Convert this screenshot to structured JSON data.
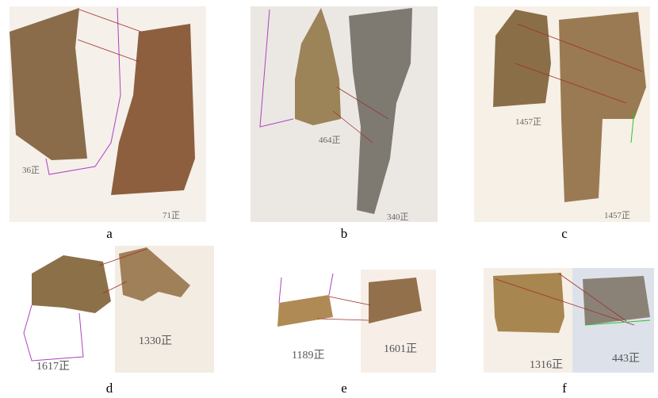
{
  "panels": [
    {
      "label": "a",
      "captions": [
        "36正",
        "71正"
      ]
    },
    {
      "label": "b",
      "captions": [
        "464正",
        "340正"
      ]
    },
    {
      "label": "c",
      "captions": [
        "1457正",
        "1457正"
      ]
    },
    {
      "label": "d",
      "captions": [
        "1617正",
        "1330正"
      ]
    },
    {
      "label": "e",
      "captions": [
        "1189正",
        "1601正"
      ]
    },
    {
      "label": "f",
      "captions": [
        "1316正",
        "443正"
      ]
    }
  ]
}
